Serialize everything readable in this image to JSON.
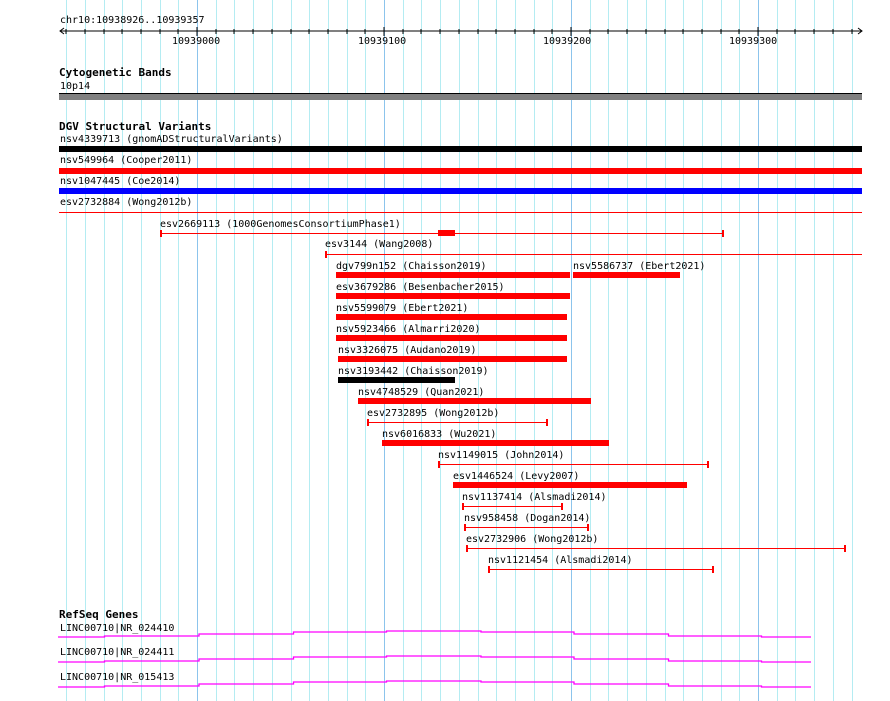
{
  "ruler": {
    "region": "chr10:10938926..10939357",
    "ticks": [
      "10939000",
      "10939100",
      "10939200",
      "10939300"
    ]
  },
  "cytobands": {
    "title": "Cytogenetic Bands",
    "band": "10p14"
  },
  "dgv": {
    "title": "DGV Structural Variants",
    "full_rows": [
      {
        "label": "nsv4339713 (gnomADStructuralVariants)",
        "color": "#000000"
      },
      {
        "label": "nsv549964 (Cooper2011)",
        "color": "#ff0000"
      },
      {
        "label": "nsv1047445 (Coe2014)",
        "color": "#0000ff"
      },
      {
        "label": "esv2732884 (Wong2012b)",
        "color": "#ff0000"
      }
    ],
    "features": [
      {
        "label": "esv2669113 (1000GenomesConsortiumPhase1)",
        "color": "#ff0000"
      },
      {
        "label": "esv3144 (Wang2008)",
        "color": "#ff0000"
      },
      {
        "label": "dgv799n152 (Chaisson2019)",
        "color": "#ff0000"
      },
      {
        "label": "nsv5586737 (Ebert2021)",
        "color": "#ff0000"
      },
      {
        "label": "esv3679286 (Besenbacher2015)",
        "color": "#ff0000"
      },
      {
        "label": "nsv5599079 (Ebert2021)",
        "color": "#ff0000"
      },
      {
        "label": "nsv5923466 (Almarri2020)",
        "color": "#ff0000"
      },
      {
        "label": "nsv3326075 (Audano2019)",
        "color": "#ff0000"
      },
      {
        "label": "nsv3193442 (Chaisson2019)",
        "color": "#000000"
      },
      {
        "label": "nsv4748529 (Quan2021)",
        "color": "#ff0000"
      },
      {
        "label": "esv2732895 (Wong2012b)",
        "color": "#ff0000"
      },
      {
        "label": "nsv6016833 (Wu2021)",
        "color": "#ff0000"
      },
      {
        "label": "nsv1149015 (John2014)",
        "color": "#ff0000"
      },
      {
        "label": "esv1446524 (Levy2007)",
        "color": "#ff0000"
      },
      {
        "label": "nsv1137414 (Alsmadi2014)",
        "color": "#ff0000"
      },
      {
        "label": "nsv958458 (Dogan2014)",
        "color": "#ff0000"
      },
      {
        "label": "esv2732906 (Wong2012b)",
        "color": "#ff0000"
      },
      {
        "label": "nsv1121454 (Alsmadi2014)",
        "color": "#ff0000"
      }
    ]
  },
  "refseq": {
    "title": "RefSeq Genes",
    "genes": [
      {
        "label": "LINC00710|NR_024410"
      },
      {
        "label": "LINC00710|NR_024411"
      },
      {
        "label": "LINC00710|NR_015413"
      }
    ],
    "color": "#ff00ff"
  }
}
